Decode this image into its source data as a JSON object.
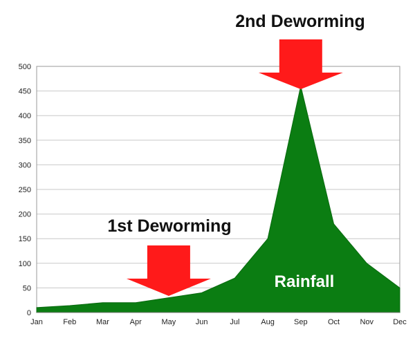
{
  "chart_data": {
    "type": "area",
    "categories": [
      "Jan",
      "Feb",
      "Mar",
      "Apr",
      "May",
      "Jun",
      "Jul",
      "Aug",
      "Sep",
      "Oct",
      "Nov",
      "Dec"
    ],
    "series": [
      {
        "name": "Rainfall",
        "values": [
          10,
          14,
          20,
          20,
          30,
          40,
          70,
          150,
          460,
          180,
          100,
          50
        ],
        "color": "#0b7d12"
      }
    ],
    "ylim": [
      0,
      500
    ],
    "yticks": [
      0,
      50,
      100,
      150,
      200,
      250,
      300,
      350,
      400,
      450,
      500
    ],
    "grid": true,
    "annotations": [
      {
        "text": "1st Deworming",
        "category": "May",
        "arrow_color": "#ff1a1a"
      },
      {
        "text": "2nd Deworming",
        "category": "Sep",
        "arrow_color": "#ff1a1a"
      }
    ],
    "title": "",
    "xlabel": "",
    "ylabel": ""
  }
}
